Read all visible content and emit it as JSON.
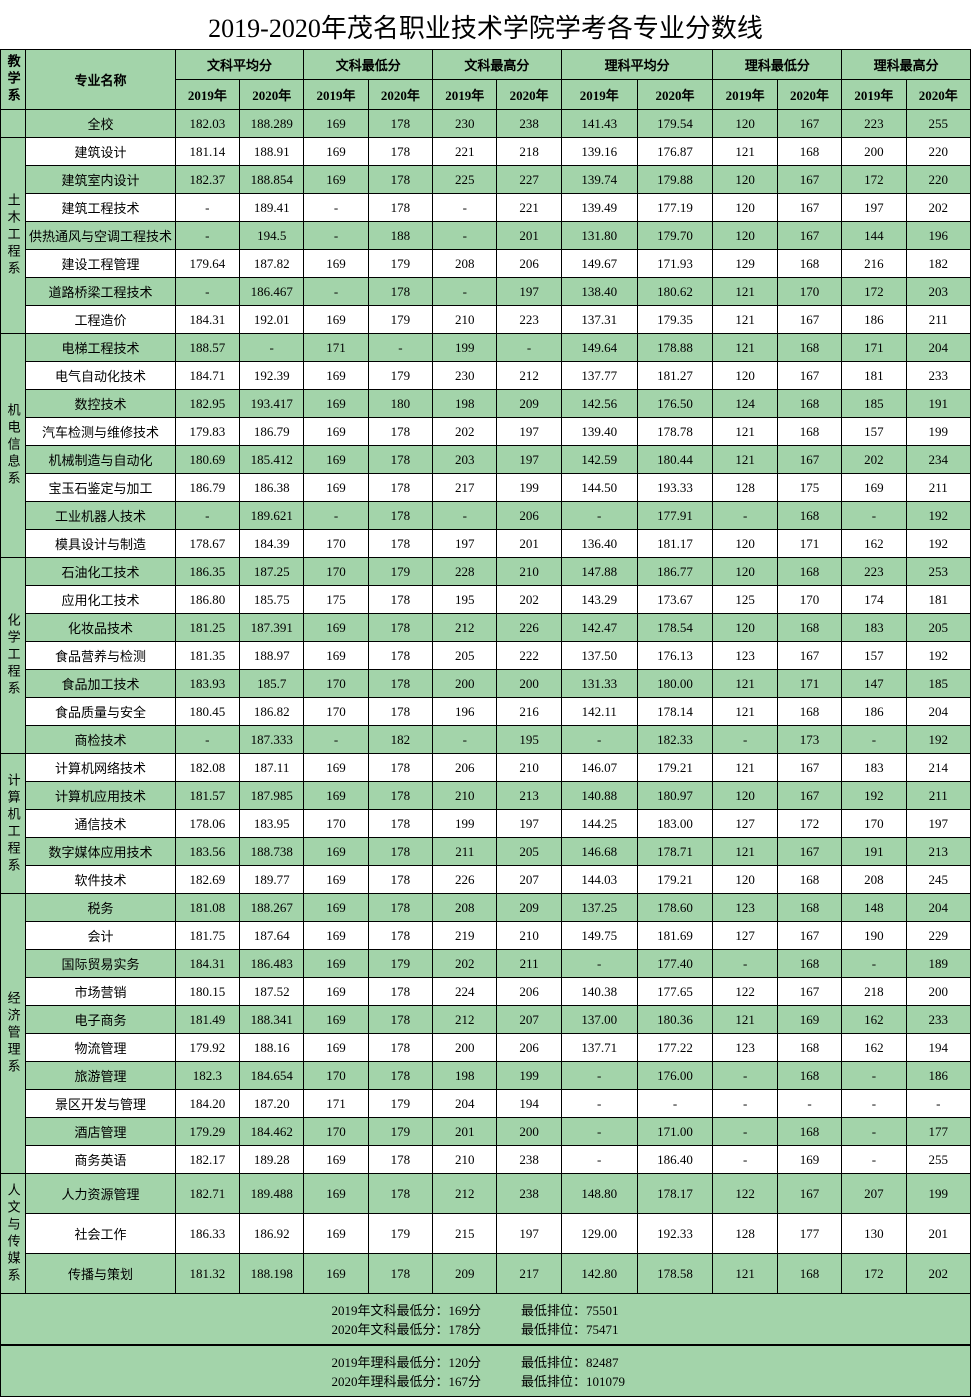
{
  "title": "2019-2020年茂名职业技术学院学考各专业分数线",
  "headers": {
    "dept": "教学系",
    "major": "专业名称",
    "groups": [
      "文科平均分",
      "文科最低分",
      "文科最高分",
      "理科平均分",
      "理科最低分",
      "理科最高分"
    ],
    "years": [
      "2019年",
      "2020年"
    ]
  },
  "footer": {
    "line1a": "2019年文科最低分：169分",
    "line1b": "最低排位：75501",
    "line2a": "2020年文科最低分：178分",
    "line2b": "最低排位：75471",
    "line3a": "2019年理科最低分：120分",
    "line3b": "最低排位：82487",
    "line4a": "2020年理科最低分：167分",
    "line4b": "最低排位：101079"
  },
  "schoolRow": {
    "major": "全校",
    "vals": [
      "182.03",
      "188.289",
      "169",
      "178",
      "230",
      "238",
      "141.43",
      "179.54",
      "120",
      "167",
      "223",
      "255"
    ]
  },
  "depts": [
    {
      "name": "土木工程系",
      "rows": [
        {
          "major": "建筑设计",
          "vals": [
            "181.14",
            "188.91",
            "169",
            "178",
            "221",
            "218",
            "139.16",
            "176.87",
            "121",
            "168",
            "200",
            "220"
          ]
        },
        {
          "major": "建筑室内设计",
          "vals": [
            "182.37",
            "188.854",
            "169",
            "178",
            "225",
            "227",
            "139.74",
            "179.88",
            "120",
            "167",
            "172",
            "220"
          ]
        },
        {
          "major": "建筑工程技术",
          "vals": [
            "-",
            "189.41",
            "-",
            "178",
            "-",
            "221",
            "139.49",
            "177.19",
            "120",
            "167",
            "197",
            "202"
          ]
        },
        {
          "major": "供热通风与空调工程技术",
          "vals": [
            "-",
            "194.5",
            "-",
            "188",
            "-",
            "201",
            "131.80",
            "179.70",
            "120",
            "167",
            "144",
            "196"
          ]
        },
        {
          "major": "建设工程管理",
          "vals": [
            "179.64",
            "187.82",
            "169",
            "179",
            "208",
            "206",
            "149.67",
            "171.93",
            "129",
            "168",
            "216",
            "182"
          ]
        },
        {
          "major": "道路桥梁工程技术",
          "vals": [
            "-",
            "186.467",
            "-",
            "178",
            "-",
            "197",
            "138.40",
            "180.62",
            "121",
            "170",
            "172",
            "203"
          ]
        },
        {
          "major": "工程造价",
          "vals": [
            "184.31",
            "192.01",
            "169",
            "179",
            "210",
            "223",
            "137.31",
            "179.35",
            "121",
            "167",
            "186",
            "211"
          ]
        }
      ]
    },
    {
      "name": "机电信息系",
      "rows": [
        {
          "major": "电梯工程技术",
          "vals": [
            "188.57",
            "-",
            "171",
            "-",
            "199",
            "-",
            "149.64",
            "178.88",
            "121",
            "168",
            "171",
            "204"
          ]
        },
        {
          "major": "电气自动化技术",
          "vals": [
            "184.71",
            "192.39",
            "169",
            "179",
            "230",
            "212",
            "137.77",
            "181.27",
            "120",
            "167",
            "181",
            "233"
          ]
        },
        {
          "major": "数控技术",
          "vals": [
            "182.95",
            "193.417",
            "169",
            "180",
            "198",
            "209",
            "142.56",
            "176.50",
            "124",
            "168",
            "185",
            "191"
          ]
        },
        {
          "major": "汽车检测与维修技术",
          "vals": [
            "179.83",
            "186.79",
            "169",
            "178",
            "202",
            "197",
            "139.40",
            "178.78",
            "121",
            "168",
            "157",
            "199"
          ]
        },
        {
          "major": "机械制造与自动化",
          "vals": [
            "180.69",
            "185.412",
            "169",
            "178",
            "203",
            "197",
            "142.59",
            "180.44",
            "121",
            "167",
            "202",
            "234"
          ]
        },
        {
          "major": "宝玉石鉴定与加工",
          "vals": [
            "186.79",
            "186.38",
            "169",
            "178",
            "217",
            "199",
            "144.50",
            "193.33",
            "128",
            "175",
            "169",
            "211"
          ]
        },
        {
          "major": "工业机器人技术",
          "vals": [
            "-",
            "189.621",
            "-",
            "178",
            "-",
            "206",
            "-",
            "177.91",
            "-",
            "168",
            "-",
            "192"
          ]
        },
        {
          "major": "模具设计与制造",
          "vals": [
            "178.67",
            "184.39",
            "170",
            "178",
            "197",
            "201",
            "136.40",
            "181.17",
            "120",
            "171",
            "162",
            "192"
          ]
        }
      ]
    },
    {
      "name": "化学工程系",
      "rows": [
        {
          "major": "石油化工技术",
          "vals": [
            "186.35",
            "187.25",
            "170",
            "179",
            "228",
            "210",
            "147.88",
            "186.77",
            "120",
            "168",
            "223",
            "253"
          ]
        },
        {
          "major": "应用化工技术",
          "vals": [
            "186.80",
            "185.75",
            "175",
            "178",
            "195",
            "202",
            "143.29",
            "173.67",
            "125",
            "170",
            "174",
            "181"
          ]
        },
        {
          "major": "化妆品技术",
          "vals": [
            "181.25",
            "187.391",
            "169",
            "178",
            "212",
            "226",
            "142.47",
            "178.54",
            "120",
            "168",
            "183",
            "205"
          ]
        },
        {
          "major": "食品营养与检测",
          "vals": [
            "181.35",
            "188.97",
            "169",
            "178",
            "205",
            "222",
            "137.50",
            "176.13",
            "123",
            "167",
            "157",
            "192"
          ]
        },
        {
          "major": "食品加工技术",
          "vals": [
            "183.93",
            "185.7",
            "170",
            "178",
            "200",
            "200",
            "131.33",
            "180.00",
            "121",
            "171",
            "147",
            "185"
          ]
        },
        {
          "major": "食品质量与安全",
          "vals": [
            "180.45",
            "186.82",
            "170",
            "178",
            "196",
            "216",
            "142.11",
            "178.14",
            "121",
            "168",
            "186",
            "204"
          ]
        },
        {
          "major": "商检技术",
          "vals": [
            "-",
            "187.333",
            "-",
            "182",
            "-",
            "195",
            "-",
            "182.33",
            "-",
            "173",
            "-",
            "192"
          ]
        }
      ]
    },
    {
      "name": "计算机工程系",
      "rows": [
        {
          "major": "计算机网络技术",
          "vals": [
            "182.08",
            "187.11",
            "169",
            "178",
            "206",
            "210",
            "146.07",
            "179.21",
            "121",
            "167",
            "183",
            "214"
          ]
        },
        {
          "major": "计算机应用技术",
          "vals": [
            "181.57",
            "187.985",
            "169",
            "178",
            "210",
            "213",
            "140.88",
            "180.97",
            "120",
            "167",
            "192",
            "211"
          ]
        },
        {
          "major": "通信技术",
          "vals": [
            "178.06",
            "183.95",
            "170",
            "178",
            "199",
            "197",
            "144.25",
            "183.00",
            "127",
            "172",
            "170",
            "197"
          ]
        },
        {
          "major": "数字媒体应用技术",
          "vals": [
            "183.56",
            "188.738",
            "169",
            "178",
            "211",
            "205",
            "146.68",
            "178.71",
            "121",
            "167",
            "191",
            "213"
          ]
        },
        {
          "major": "软件技术",
          "vals": [
            "182.69",
            "189.77",
            "169",
            "178",
            "226",
            "207",
            "144.03",
            "179.21",
            "120",
            "168",
            "208",
            "245"
          ]
        }
      ]
    },
    {
      "name": "经济管理系",
      "rows": [
        {
          "major": "税务",
          "vals": [
            "181.08",
            "188.267",
            "169",
            "178",
            "208",
            "209",
            "137.25",
            "178.60",
            "123",
            "168",
            "148",
            "204"
          ]
        },
        {
          "major": "会计",
          "vals": [
            "181.75",
            "187.64",
            "169",
            "178",
            "219",
            "210",
            "149.75",
            "181.69",
            "127",
            "167",
            "190",
            "229"
          ]
        },
        {
          "major": "国际贸易实务",
          "vals": [
            "184.31",
            "186.483",
            "169",
            "179",
            "202",
            "211",
            "-",
            "177.40",
            "-",
            "168",
            "-",
            "189"
          ]
        },
        {
          "major": "市场营销",
          "vals": [
            "180.15",
            "187.52",
            "169",
            "178",
            "224",
            "206",
            "140.38",
            "177.65",
            "122",
            "167",
            "218",
            "200"
          ]
        },
        {
          "major": "电子商务",
          "vals": [
            "181.49",
            "188.341",
            "169",
            "178",
            "212",
            "207",
            "137.00",
            "180.36",
            "121",
            "169",
            "162",
            "233"
          ]
        },
        {
          "major": "物流管理",
          "vals": [
            "179.92",
            "188.16",
            "169",
            "178",
            "200",
            "206",
            "137.71",
            "177.22",
            "123",
            "168",
            "162",
            "194"
          ]
        },
        {
          "major": "旅游管理",
          "vals": [
            "182.3",
            "184.654",
            "170",
            "178",
            "198",
            "199",
            "-",
            "176.00",
            "-",
            "168",
            "-",
            "186"
          ]
        },
        {
          "major": "景区开发与管理",
          "vals": [
            "184.20",
            "187.20",
            "171",
            "179",
            "204",
            "194",
            "-",
            "-",
            "-",
            "-",
            "-",
            "-"
          ]
        },
        {
          "major": "酒店管理",
          "vals": [
            "179.29",
            "184.462",
            "170",
            "179",
            "201",
            "200",
            "-",
            "171.00",
            "-",
            "168",
            "-",
            "177"
          ]
        },
        {
          "major": "商务英语",
          "vals": [
            "182.17",
            "189.28",
            "169",
            "178",
            "210",
            "238",
            "-",
            "186.40",
            "-",
            "169",
            "-",
            "255"
          ]
        }
      ]
    },
    {
      "name": "人文与传媒系",
      "rows": [
        {
          "major": "人力资源管理",
          "vals": [
            "182.71",
            "189.488",
            "169",
            "178",
            "212",
            "238",
            "148.80",
            "178.17",
            "122",
            "167",
            "207",
            "199"
          ]
        },
        {
          "major": "社会工作",
          "vals": [
            "186.33",
            "186.92",
            "169",
            "179",
            "215",
            "197",
            "129.00",
            "192.33",
            "128",
            "177",
            "130",
            "201"
          ]
        },
        {
          "major": "传播与策划",
          "vals": [
            "181.32",
            "188.198",
            "169",
            "178",
            "209",
            "217",
            "142.80",
            "178.58",
            "121",
            "168",
            "172",
            "202"
          ]
        }
      ]
    }
  ]
}
